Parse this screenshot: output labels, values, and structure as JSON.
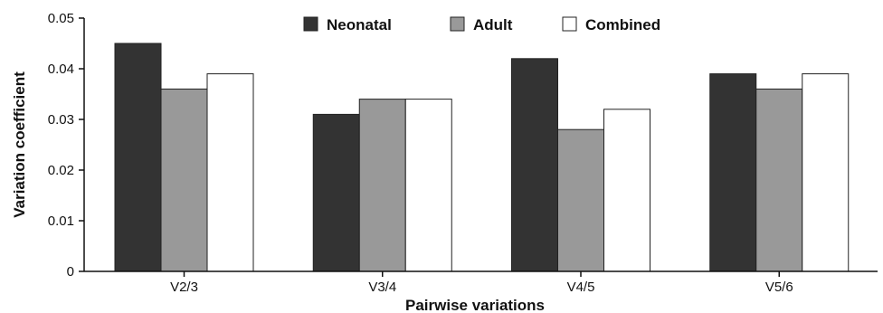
{
  "chart_data": {
    "type": "bar",
    "title": "",
    "xlabel": "Pairwise variations",
    "ylabel": "Variation coefficient",
    "categories": [
      "V2/3",
      "V3/4",
      "V4/5",
      "V5/6"
    ],
    "series": [
      {
        "name": "Neonatal",
        "color": "#333333",
        "values": [
          0.045,
          0.031,
          0.042,
          0.039
        ]
      },
      {
        "name": "Adult",
        "color": "#999999",
        "values": [
          0.036,
          0.034,
          0.028,
          0.036
        ]
      },
      {
        "name": "Combined",
        "color": "#ffffff",
        "values": [
          0.039,
          0.034,
          0.032,
          0.039
        ]
      }
    ],
    "ylim": [
      0,
      0.05
    ],
    "yticks": [
      "0",
      "0.01",
      "0.02",
      "0.03",
      "0.04",
      "0.05"
    ],
    "grid": false,
    "legend_position": "top"
  }
}
